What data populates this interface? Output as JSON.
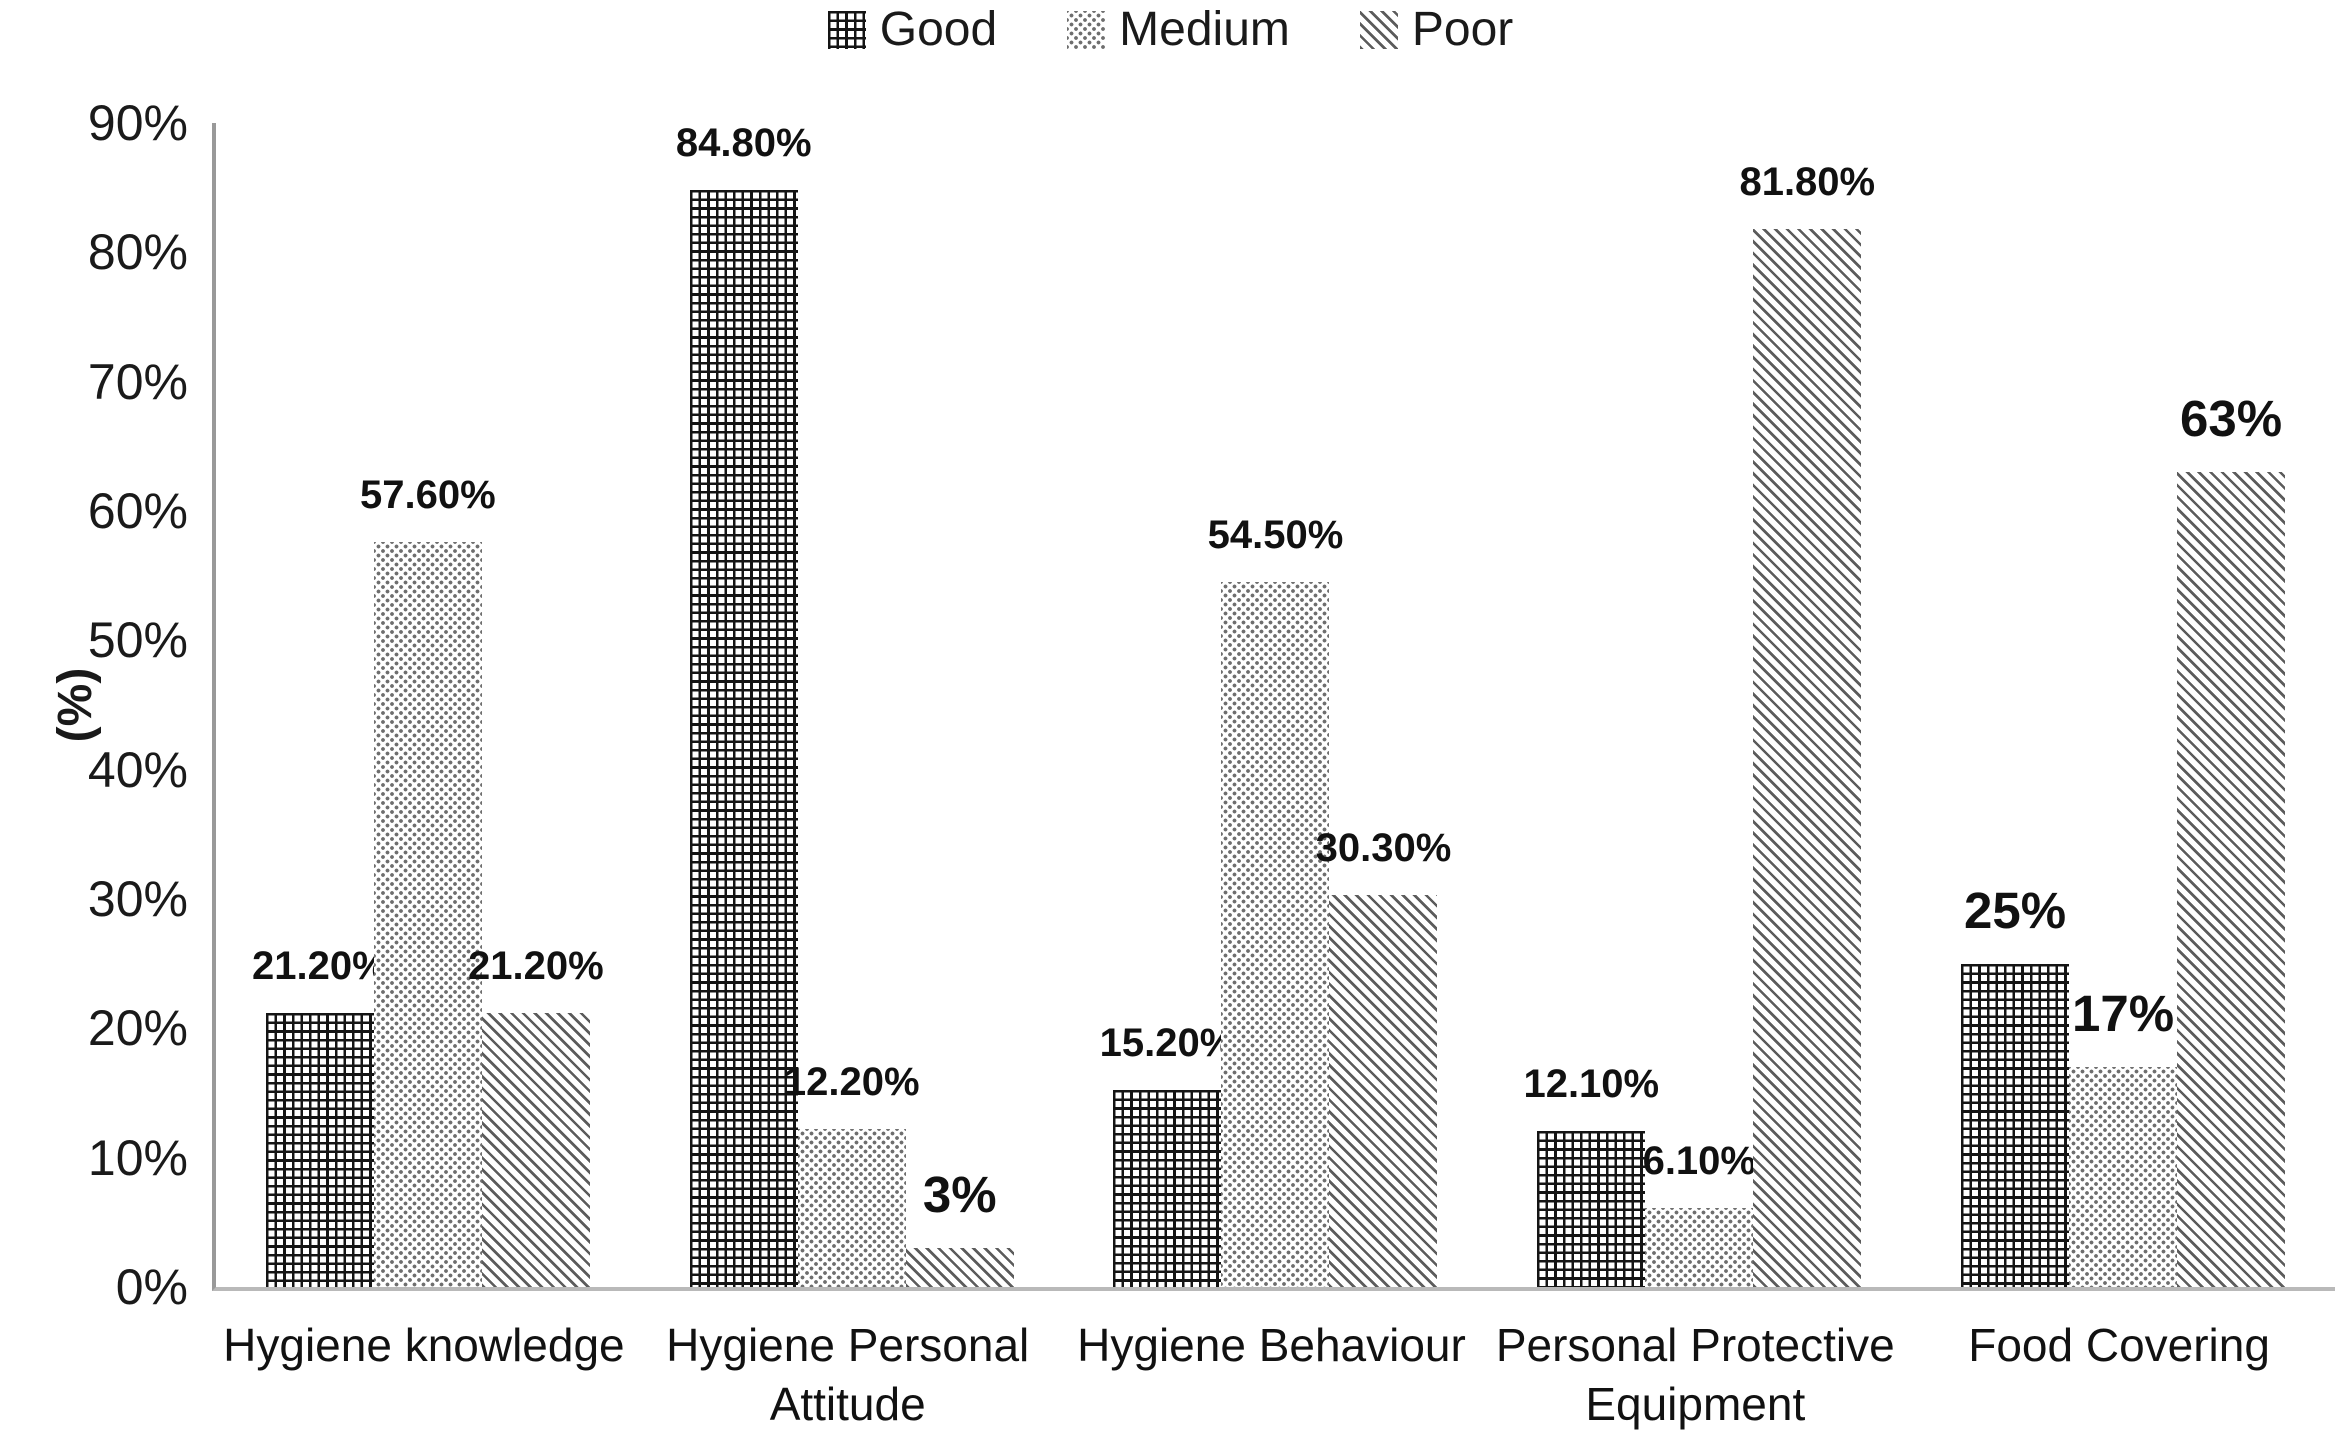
{
  "chart_data": {
    "type": "bar",
    "title": "",
    "xlabel": "",
    "ylabel": "(%)",
    "categories": [
      "Hygiene knowledge",
      "Hygiene Personal Attitude",
      "Hygiene Behaviour",
      "Personal Protective Equipment",
      "Food Covering"
    ],
    "series": [
      {
        "name": "Good",
        "pattern": "grid",
        "values": [
          21.2,
          84.8,
          15.2,
          12.1,
          25
        ],
        "labels": [
          "21.20%",
          "84.80%",
          "15.20%",
          "12.10%",
          "25%"
        ]
      },
      {
        "name": "Medium",
        "pattern": "dots",
        "values": [
          57.6,
          12.2,
          54.5,
          6.1,
          17
        ],
        "labels": [
          "57.60%",
          "12.20%",
          "54.50%",
          "6.10%",
          "17%"
        ]
      },
      {
        "name": "Poor",
        "pattern": "diagonal",
        "values": [
          21.2,
          3,
          30.3,
          81.8,
          63
        ],
        "labels": [
          "21.20%",
          "3%",
          "30.30%",
          "81.80%",
          "63%"
        ]
      }
    ],
    "y_axis": {
      "min": 0,
      "max": 90,
      "tick_step": 10,
      "tick_labels": [
        "0%",
        "10%",
        "20%",
        "30%",
        "40%",
        "50%",
        "60%",
        "70%",
        "80%",
        "90%"
      ],
      "grid": false
    },
    "legend": {
      "position": "top",
      "items": [
        "Good",
        "Medium",
        "Poor"
      ]
    },
    "colors": {
      "background": "#ffffff",
      "text": "#1a1a1a",
      "y_axis_line": "#999999",
      "baseline": "#b9b9b9",
      "pattern_grid": "#141414",
      "pattern_dots": "#6e6e6e",
      "pattern_diagonal": "#5c5c5c"
    }
  }
}
